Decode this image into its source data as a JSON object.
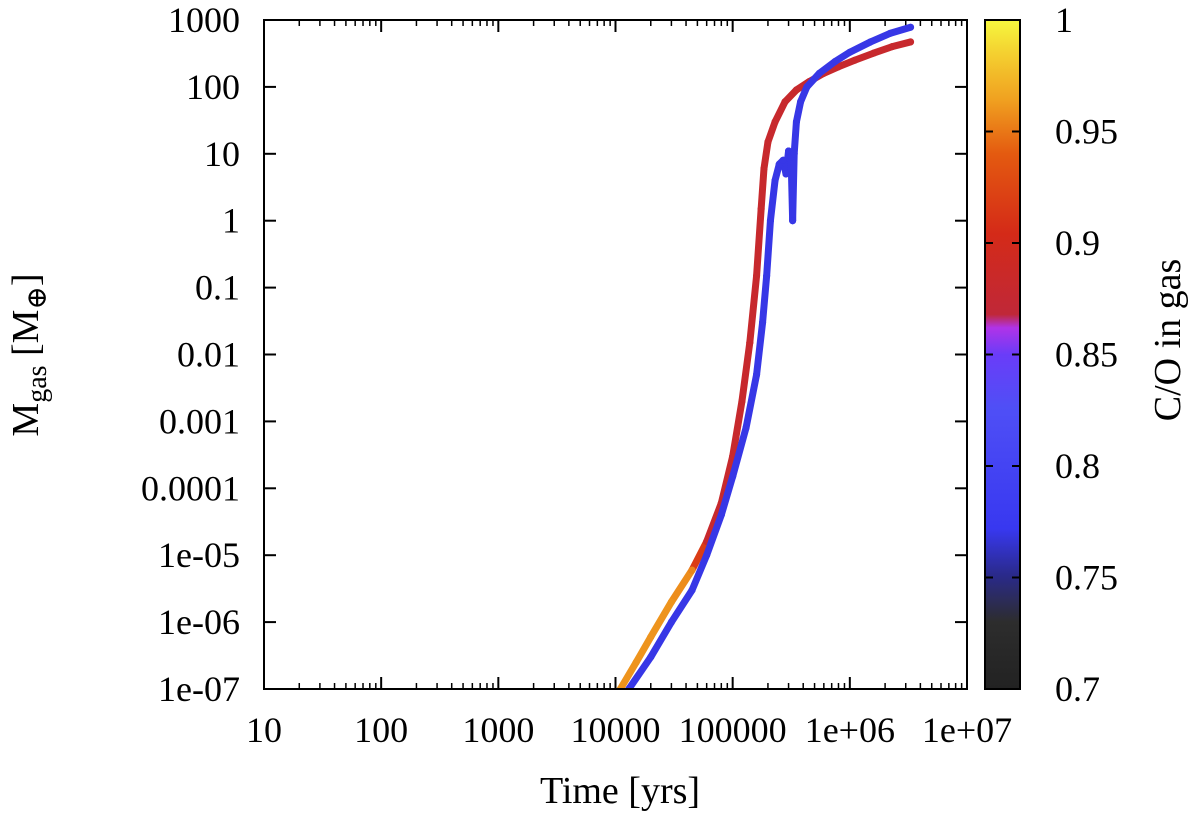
{
  "chart_data": {
    "type": "scatter",
    "xlabel": "Time [yrs]",
    "ylabel": {
      "main": "M",
      "sub": "gas",
      "unit_open": " [M",
      "unit_sym": "⊕",
      "unit_close": "]"
    },
    "xscale": "log",
    "yscale": "log",
    "xlim": [
      10,
      10000000
    ],
    "ylim": [
      1e-07,
      1000
    ],
    "x_ticks": [
      "10",
      "100",
      "1000",
      "10000",
      "100000",
      "1e+06",
      "1e+07"
    ],
    "y_ticks": [
      "1e-07",
      "1e-06",
      "1e-05",
      "0.0001",
      "0.001",
      "0.01",
      "0.1",
      "1",
      "10",
      "100",
      "1000"
    ],
    "colorbar": {
      "label": "C/O in gas",
      "range": [
        0.7,
        1.0
      ],
      "ticks": [
        "0.7",
        "0.75",
        "0.8",
        "0.85",
        "0.9",
        "0.95",
        "1"
      ]
    },
    "series": [
      {
        "points": [
          [
            11000,
            1e-07,
            0.96
          ],
          [
            15000,
            2.5e-07,
            0.96
          ],
          [
            20000,
            6e-07,
            0.96
          ],
          [
            30000,
            2e-06,
            0.96
          ],
          [
            45000,
            6e-06,
            0.955
          ],
          [
            60000,
            1.6e-05,
            0.88
          ],
          [
            80000,
            6e-05,
            0.88
          ],
          [
            100000,
            0.0003,
            0.88
          ],
          [
            120000,
            0.002,
            0.88
          ],
          [
            140000,
            0.015,
            0.88
          ],
          [
            160000,
            0.15,
            0.88
          ],
          [
            175000,
            1.5,
            0.88
          ],
          [
            185000,
            6,
            0.88
          ],
          [
            200000,
            15,
            0.88
          ],
          [
            230000,
            30,
            0.88
          ],
          [
            280000,
            60,
            0.88
          ],
          [
            350000,
            90,
            0.88
          ],
          [
            450000,
            120,
            0.88
          ],
          [
            600000,
            160,
            0.88
          ],
          [
            800000,
            200,
            0.88
          ],
          [
            1100000,
            250,
            0.88
          ],
          [
            1600000,
            320,
            0.88
          ],
          [
            2300000,
            400,
            0.88
          ],
          [
            3300000,
            470,
            0.88
          ]
        ]
      },
      {
        "points": [
          [
            13000,
            1e-07,
            0.77
          ],
          [
            20000,
            3e-07,
            0.77
          ],
          [
            30000,
            1e-06,
            0.77
          ],
          [
            45000,
            3e-06,
            0.77
          ],
          [
            60000,
            1e-05,
            0.77
          ],
          [
            80000,
            4e-05,
            0.77
          ],
          [
            100000,
            0.00015,
            0.77
          ],
          [
            130000,
            0.0008,
            0.77
          ],
          [
            160000,
            0.005,
            0.77
          ],
          [
            180000,
            0.03,
            0.77
          ],
          [
            195000,
            0.15,
            0.77
          ],
          [
            210000,
            1,
            0.77
          ],
          [
            230000,
            4,
            0.77
          ],
          [
            250000,
            7,
            0.77
          ],
          [
            270000,
            8,
            0.77
          ],
          [
            285000,
            5,
            0.77
          ],
          [
            300000,
            11,
            0.77
          ],
          [
            315000,
            9,
            0.77
          ],
          [
            325000,
            1,
            0.77
          ],
          [
            335000,
            10,
            0.77
          ],
          [
            350000,
            30,
            0.77
          ],
          [
            380000,
            60,
            0.77
          ],
          [
            430000,
            100,
            0.77
          ],
          [
            550000,
            160,
            0.77
          ],
          [
            750000,
            240,
            0.77
          ],
          [
            1000000,
            330,
            0.77
          ],
          [
            1500000,
            470,
            0.77
          ],
          [
            2200000,
            630,
            0.77
          ],
          [
            3300000,
            780,
            0.77
          ]
        ]
      }
    ]
  }
}
